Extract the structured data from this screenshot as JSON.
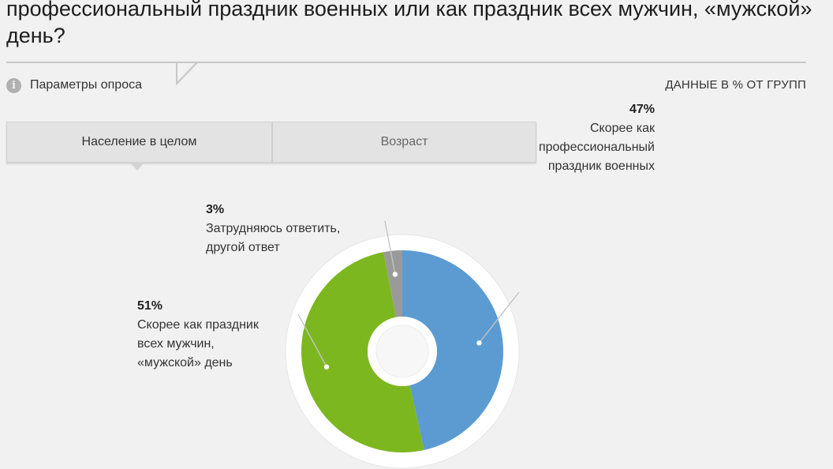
{
  "title": "профессиональный праздник военных или как праздник всех мужчин, «мужской» день?",
  "params": {
    "label": "Параметры опроса",
    "icon": "info-icon"
  },
  "units_label": "ДАННЫЕ В % ОТ ГРУПП",
  "tabs": [
    {
      "label": "Население в целом",
      "active": true
    },
    {
      "label": "Возраст",
      "active": false
    }
  ],
  "chart_data": {
    "type": "pie",
    "donut": true,
    "unit": "%",
    "legend": "callout labels",
    "slices": [
      {
        "label": "Скорее как профессиональный праздник военных",
        "value": 47,
        "pct_label": "47%",
        "text": "Скорее как\nпрофессиональный\nпраздник военных",
        "color": "#5b9bd2"
      },
      {
        "label": "Скорее как праздник всех мужчин, «мужской» день",
        "value": 51,
        "pct_label": "51%",
        "text": "Скорее как праздник\nвсех мужчин,\n«мужской» день",
        "color": "#7db720"
      },
      {
        "label": "Затрудняюсь ответить, другой ответ",
        "value": 3,
        "pct_label": "3%",
        "text": "Затрудняюсь ответить,\nдругой ответ",
        "color": "#9a9a9a"
      }
    ]
  }
}
